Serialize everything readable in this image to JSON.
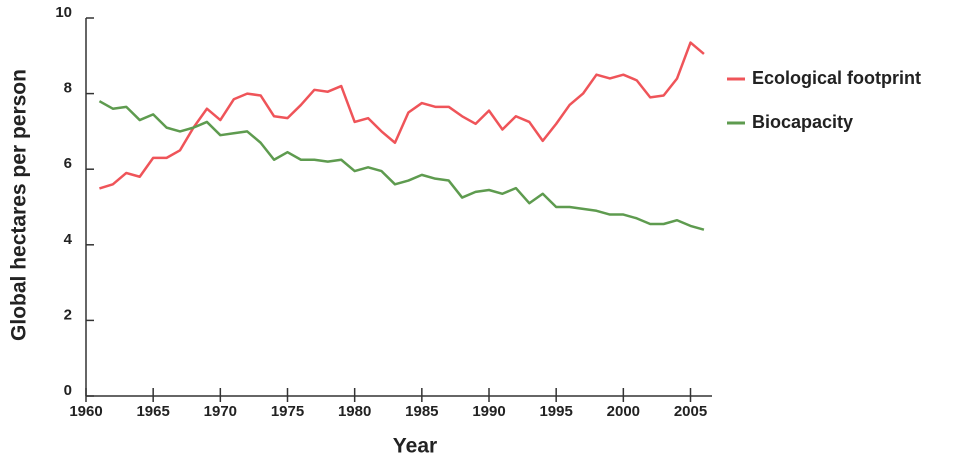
{
  "chart_data": {
    "type": "line",
    "x_label": "Year",
    "y_label": "Global hectares per person",
    "x": [
      1961,
      1962,
      1963,
      1964,
      1965,
      1966,
      1967,
      1968,
      1969,
      1970,
      1971,
      1972,
      1973,
      1974,
      1975,
      1976,
      1977,
      1978,
      1979,
      1980,
      1981,
      1982,
      1983,
      1984,
      1985,
      1986,
      1987,
      1988,
      1989,
      1990,
      1991,
      1992,
      1993,
      1994,
      1995,
      1996,
      1997,
      1998,
      1999,
      2000,
      2001,
      2002,
      2003,
      2004,
      2005,
      2006
    ],
    "series": [
      {
        "name": "Ecological footprint",
        "color": "#ef5459",
        "values": [
          5.49,
          5.6,
          5.9,
          5.8,
          6.3,
          6.3,
          6.5,
          7.1,
          7.6,
          7.3,
          7.85,
          8.0,
          7.95,
          7.4,
          7.35,
          7.7,
          8.1,
          8.05,
          8.2,
          7.25,
          7.35,
          7.0,
          6.7,
          7.5,
          7.75,
          7.65,
          7.65,
          7.4,
          7.2,
          7.55,
          7.05,
          7.4,
          7.25,
          6.75,
          7.2,
          7.7,
          8.0,
          8.5,
          8.4,
          8.5,
          8.35,
          7.9,
          7.95,
          8.4,
          9.35,
          9.05
        ]
      },
      {
        "name": "Biocapacity",
        "color": "#5e9b4f",
        "values": [
          7.8,
          7.6,
          7.65,
          7.3,
          7.45,
          7.1,
          7.0,
          7.1,
          7.25,
          6.9,
          6.95,
          7.0,
          6.7,
          6.25,
          6.45,
          6.25,
          6.25,
          6.2,
          6.25,
          5.95,
          6.05,
          5.95,
          5.6,
          5.7,
          5.85,
          5.75,
          5.7,
          5.25,
          5.4,
          5.45,
          5.35,
          5.5,
          5.1,
          5.35,
          5.0,
          5.0,
          4.95,
          4.9,
          4.8,
          4.8,
          4.7,
          4.55,
          4.55,
          4.65,
          4.5,
          4.4
        ]
      }
    ],
    "xlim": [
      1960,
      2006.6
    ],
    "ylim": [
      0,
      10
    ],
    "xticks": [
      1960,
      1965,
      1970,
      1975,
      1980,
      1985,
      1990,
      1995,
      2000,
      2005
    ],
    "yticks": [
      0,
      2,
      4,
      6,
      8,
      10
    ],
    "legend": "right"
  }
}
